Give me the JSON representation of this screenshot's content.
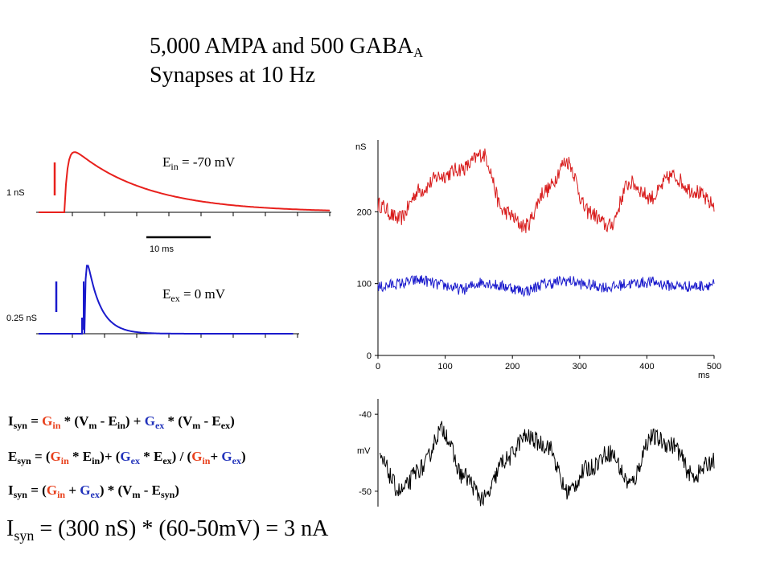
{
  "title": {
    "line1_prefix": "5,000 AMPA and 500 GABA",
    "line1_sub": "A",
    "line2": "Synapses at 10 Hz"
  },
  "inhibitory_panel": {
    "scale_label": "1 nS",
    "reversal_prefix": "E",
    "reversal_sub": "in",
    "reversal_value": " = -70 mV",
    "color": "#e8201c"
  },
  "time_scale_label": "10 ms",
  "excitatory_panel": {
    "scale_label": "0.25 nS",
    "reversal_prefix": "E",
    "reversal_sub": "ex",
    "reversal_value": " = 0 mV",
    "color": "#1a1acc"
  },
  "equations": {
    "eq1": {
      "I": "I",
      "I_sub": "syn",
      "eq": " = ",
      "G1": "G",
      "G1_sub": "in",
      "mid1": " * (V",
      "V1_sub": "m",
      "mid2": " - E",
      "E1_sub": "in",
      "mid3": ") + ",
      "G2": "G",
      "G2_sub": "ex",
      "mid4": " * (V",
      "V2_sub": "m",
      "mid5": " - E",
      "E2_sub": "ex",
      "end": ")"
    },
    "eq2": {
      "E": "E",
      "E_sub": "syn",
      "eq": " =  (",
      "G1": "G",
      "G1_sub": "in",
      "mid1": " * E",
      "Ein_sub": "in",
      "mid2": ")+ (",
      "G2": "G",
      "G2_sub": "ex",
      "mid3": " * E",
      "Eex_sub": "ex",
      "mid4": ") / (",
      "G3": "G",
      "G3_sub": "in",
      "mid5": "+ ",
      "G4": "G",
      "G4_sub": "ex",
      "end": ")"
    },
    "eq3": {
      "I": "I",
      "I_sub": "syn",
      "eq": " = (",
      "G1": "G",
      "G1_sub": "in",
      "mid1": " + ",
      "G2": "G",
      "G2_sub": "ex",
      "mid2": ") * (V",
      "V_sub": "m",
      "mid3": " - E",
      "E_sub": "syn",
      "end": ")"
    },
    "final": {
      "I": "I",
      "I_sub": "syn",
      "rest": " = (300 nS) * (60-50mV) = 3 nA"
    }
  },
  "chart_data": [
    {
      "type": "line",
      "title": "",
      "ylabel": "nS",
      "xlabel": "ms",
      "xlim": [
        0,
        500
      ],
      "ylim": [
        0,
        300
      ],
      "xticks": [
        "0",
        "100",
        "200",
        "300",
        "400",
        "500"
      ],
      "yticks": [
        "0",
        "100",
        "200"
      ],
      "series": [
        {
          "color": "#d81c1c",
          "mean": 215,
          "values_approx": [
            210,
            190,
            230,
            250,
            260,
            280,
            200,
            180,
            230,
            270,
            200,
            180,
            240,
            220,
            250,
            230,
            210
          ]
        },
        {
          "color": "#1a1acc",
          "mean": 97,
          "values_approx": [
            95,
            100,
            105,
            98,
            92,
            102,
            96,
            90,
            100,
            104,
            98,
            95,
            100,
            102,
            97,
            96,
            99
          ]
        }
      ]
    },
    {
      "type": "line",
      "title": "",
      "ylabel": "mV",
      "yticks": [
        "-40",
        "-50"
      ],
      "ylim": [
        -52,
        -38
      ],
      "series": [
        {
          "color": "#000000",
          "values_approx": [
            -46,
            -50,
            -47,
            -42,
            -48,
            -51,
            -46,
            -43,
            -44,
            -50,
            -47,
            -45,
            -49,
            -43,
            -44,
            -48,
            -46
          ]
        }
      ]
    }
  ]
}
